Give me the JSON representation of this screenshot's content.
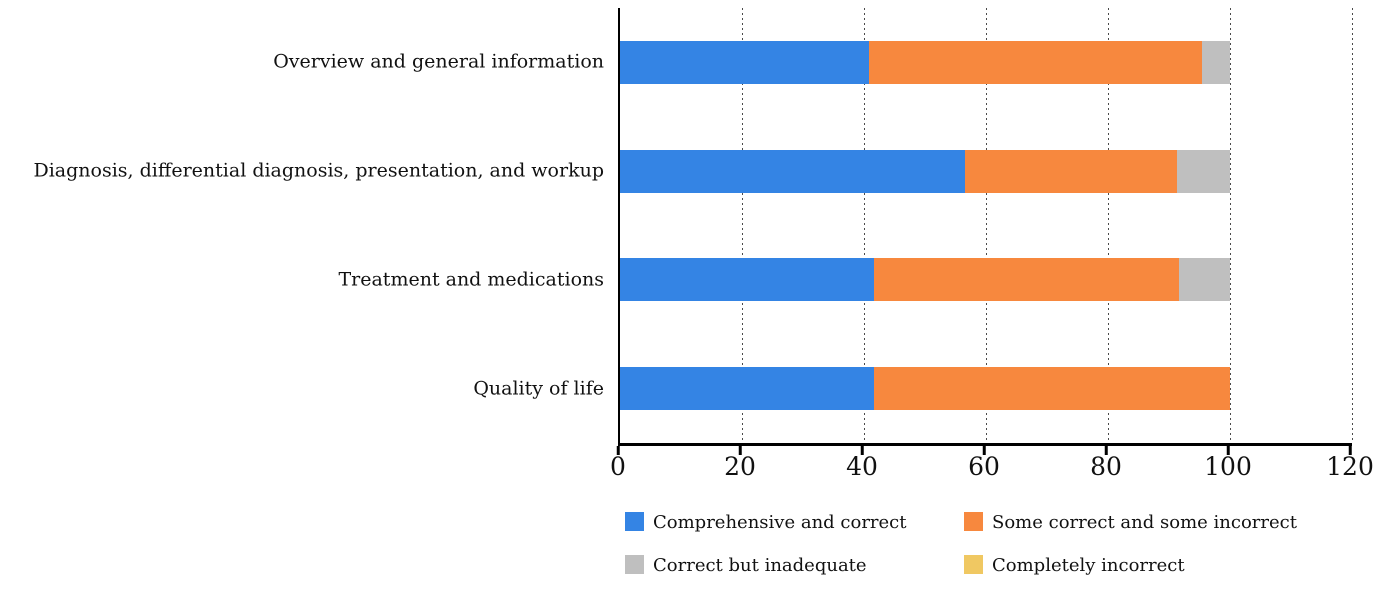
{
  "chart_data": {
    "type": "bar",
    "orientation": "horizontal",
    "stacked": true,
    "title": "",
    "xlabel": "",
    "ylabel": "",
    "categories": [
      "Overview and general information",
      "Diagnosis, differential diagnosis, presentation, and workup",
      "Treatment and medications",
      "Quality of life"
    ],
    "series": [
      {
        "name": "Comprehensive and correct",
        "color_key": "blue",
        "values": [
          40.9,
          56.5,
          41.7,
          41.7
        ]
      },
      {
        "name": "Some correct and some incorrect",
        "color_key": "orange",
        "values": [
          54.5,
          34.8,
          50.0,
          58.3
        ]
      },
      {
        "name": "Correct but inadequate",
        "color_key": "gray",
        "values": [
          4.6,
          8.7,
          8.3,
          0
        ]
      },
      {
        "name": "Completely incorrect",
        "color_key": "yellow",
        "values": [
          0,
          0,
          0,
          0
        ]
      }
    ],
    "colors": {
      "blue": "#3484E4",
      "orange": "#F7883E",
      "gray": "#BFBFBF",
      "yellow": "#F0C862"
    },
    "xlim": [
      0,
      120
    ],
    "x_ticks": [
      0,
      20,
      40,
      60,
      80,
      100,
      120
    ],
    "grid": "vertical-dotted",
    "legend_position": "bottom"
  }
}
